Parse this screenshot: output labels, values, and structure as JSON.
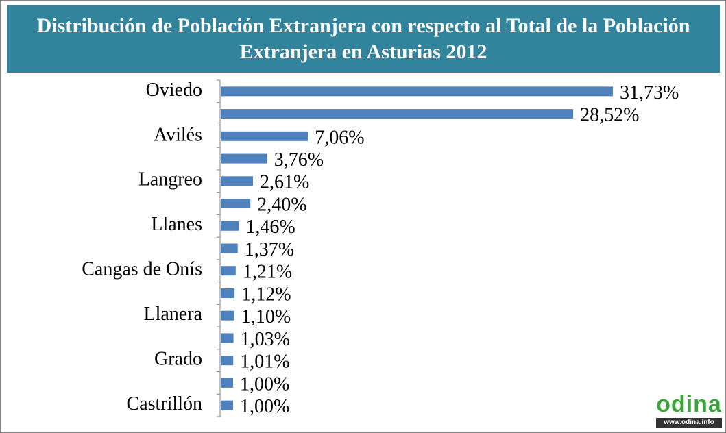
{
  "chart_data": {
    "type": "bar",
    "orientation": "horizontal",
    "title": "Distribución de Población Extranjera con respecto al Total de la Población Extranjera en Asturias 2012",
    "categories": [
      "Oviedo",
      null,
      "Avilés",
      null,
      "Langreo",
      null,
      "Llanes",
      null,
      "Cangas de Onís",
      null,
      "Llanera",
      null,
      "Grado",
      null,
      "Castrillón"
    ],
    "values": [
      31.73,
      28.52,
      7.06,
      3.76,
      2.61,
      2.4,
      1.46,
      1.37,
      1.21,
      1.12,
      1.1,
      1.03,
      1.01,
      1.0,
      1.0
    ],
    "value_labels": [
      "31,73%",
      "28,52%",
      "7,06%",
      "3,76%",
      "2,61%",
      "2,40%",
      "1,46%",
      "1,37%",
      "1,21%",
      "1,12%",
      "1,10%",
      "1,03%",
      "1,01%",
      "1,00%",
      "1,00%"
    ],
    "color": "#4f81bd"
  },
  "logo": {
    "name": "odina",
    "url": "www.odina.info"
  }
}
